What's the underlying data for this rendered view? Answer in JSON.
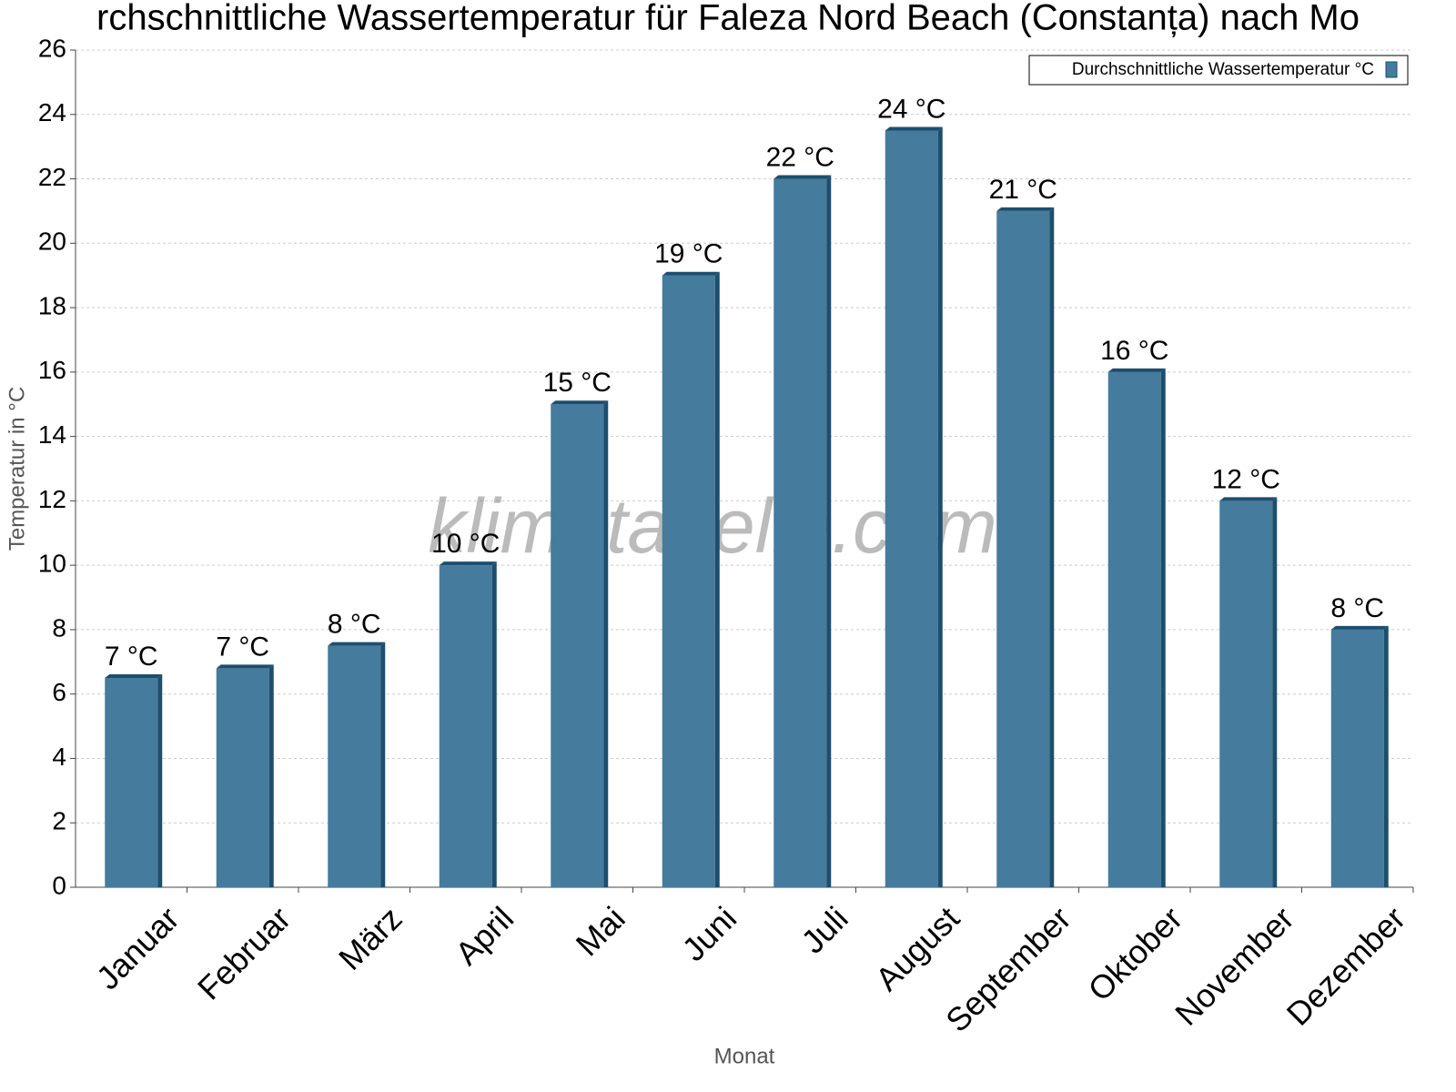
{
  "chart_data": {
    "type": "bar",
    "title": "rchschnittliche Wassertemperatur für Faleza Nord Beach (Constanța) nach Mo",
    "x_label": "Monat",
    "y_label": "Temperatur in °C",
    "watermark": "klimatabelle.com",
    "categories": [
      "Januar",
      "Februar",
      "März",
      "April",
      "Mai",
      "Juni",
      "Juli",
      "August",
      "September",
      "Oktober",
      "November",
      "Dezember"
    ],
    "series": [
      {
        "name": "Durchschnittliche Wassertemperatur °C",
        "color": "#457b9d",
        "values": [
          6.5,
          6.8,
          7.5,
          10,
          15,
          19,
          22,
          23.5,
          21,
          16,
          12,
          8
        ],
        "value_labels": [
          "7 °C",
          "7 °C",
          "8 °C",
          "10 °C",
          "15 °C",
          "19 °C",
          "22 °C",
          "24 °C",
          "21 °C",
          "16 °C",
          "12 °C",
          "8 °C"
        ]
      }
    ],
    "ylim": [
      0,
      26
    ],
    "yticks": [
      0,
      2,
      4,
      6,
      8,
      10,
      12,
      14,
      16,
      18,
      20,
      22,
      24,
      26
    ],
    "grid": true,
    "legend": "top-right"
  }
}
